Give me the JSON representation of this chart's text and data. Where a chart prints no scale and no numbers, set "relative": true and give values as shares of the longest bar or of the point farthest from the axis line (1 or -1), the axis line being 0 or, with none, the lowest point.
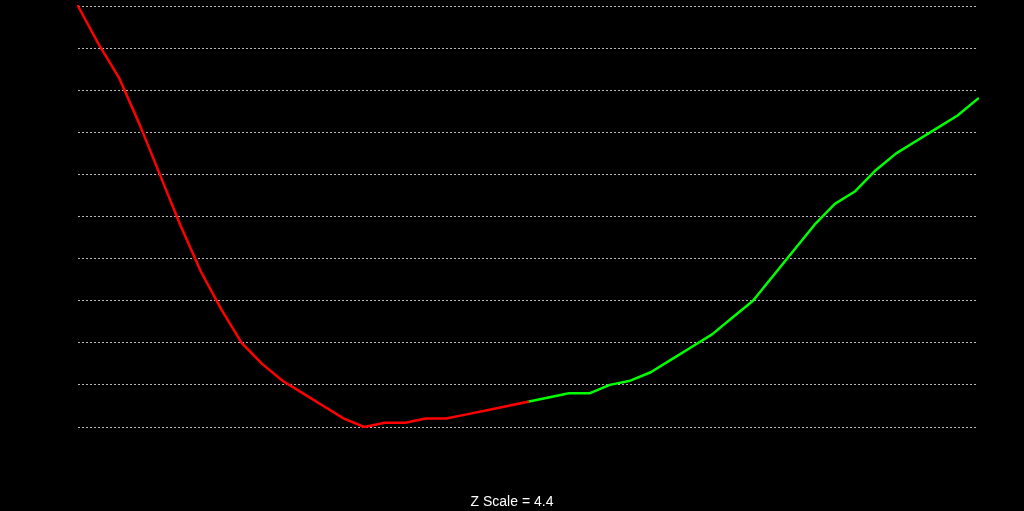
{
  "chart_data": {
    "type": "line",
    "relative": true,
    "grid": "y",
    "legend": false,
    "marker": "none",
    "line_style": "solid",
    "categories": [
      null,
      null,
      null,
      null,
      null,
      null,
      null,
      null,
      null,
      null,
      null,
      null,
      null,
      null,
      null,
      null,
      null,
      null,
      null,
      null,
      null,
      null,
      null,
      null,
      null,
      null,
      null,
      null,
      null,
      null,
      null,
      null,
      null,
      null,
      null,
      null,
      null,
      null,
      null,
      null,
      null,
      null,
      null,
      null,
      null
    ],
    "series": [
      {
        "color": "#ff0000",
        "values": [
          1.0,
          0.91,
          0.83,
          0.72,
          0.6,
          0.48,
          0.37,
          0.28,
          0.2,
          0.15,
          0.11,
          0.08,
          0.05,
          0.02,
          0,
          0.01,
          0.01,
          0.02,
          0.02,
          0.03,
          0.04,
          0.05,
          0.06,
          null,
          null,
          null,
          null,
          null,
          null,
          null,
          null,
          null,
          null,
          null,
          null,
          null,
          null,
          null,
          null,
          null,
          null,
          null,
          null,
          null,
          null
        ]
      },
      {
        "color": "#00ff00",
        "values": [
          null,
          null,
          null,
          null,
          null,
          null,
          null,
          null,
          null,
          null,
          null,
          null,
          null,
          null,
          null,
          null,
          null,
          null,
          null,
          null,
          null,
          null,
          0.06,
          0.07,
          0.08,
          0.08,
          0.1,
          0.11,
          0.13,
          0.16,
          0.19,
          0.22,
          0.26,
          0.3,
          0.36,
          0.42,
          0.48,
          0.53,
          0.56,
          0.61,
          0.65,
          0.68,
          0.71,
          0.74,
          0.78
        ]
      }
    ],
    "annotations": [
      "Z Scale = 4.4"
    ]
  }
}
